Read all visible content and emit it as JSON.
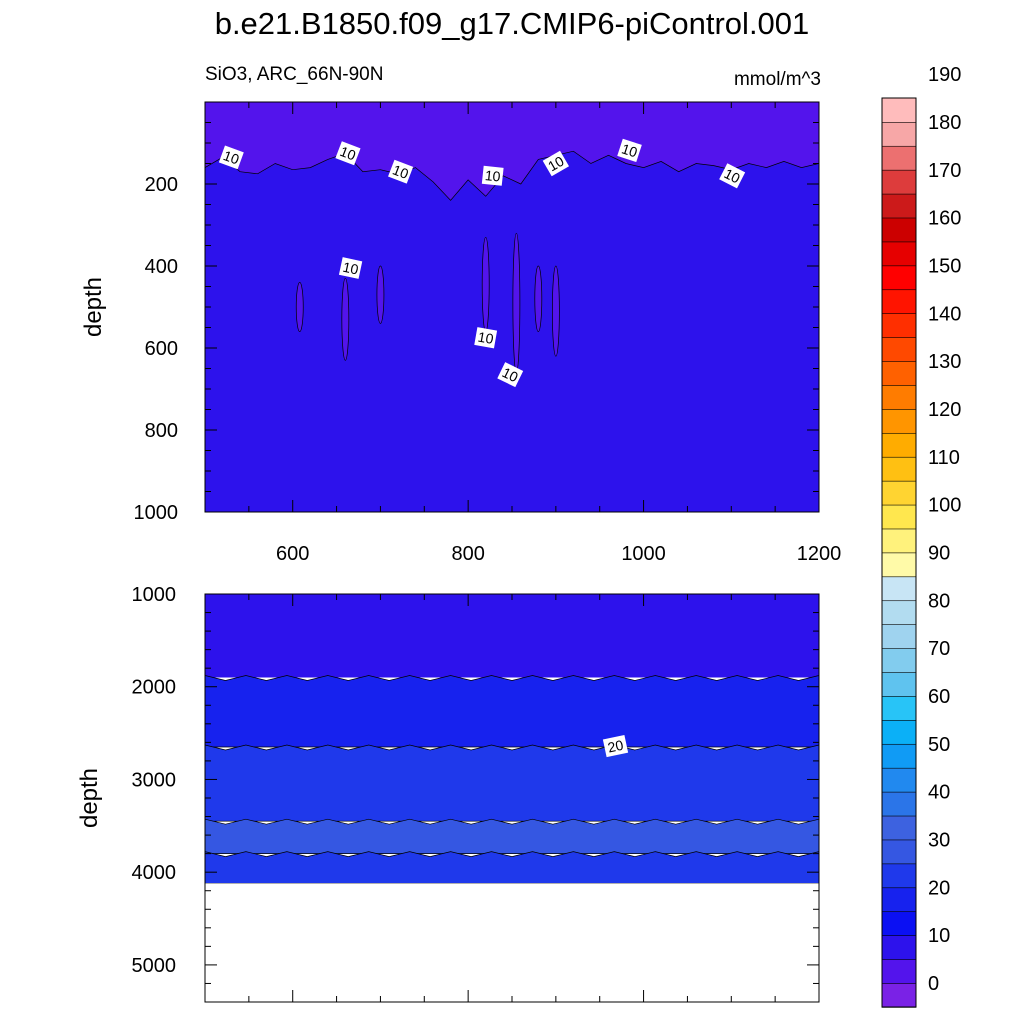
{
  "title": "b.e21.B1850.f09_g17.CMIP6-piControl.001",
  "subtitle_left": "SiO3, ARC_66N-90N",
  "units": "mmol/m^3",
  "chart_data": [
    {
      "type": "heatmap",
      "panel": "upper",
      "ylabel": "depth",
      "xlabel": "",
      "xlim": [
        500,
        1200
      ],
      "ylim": [
        1000,
        0
      ],
      "xticks": [
        600,
        800,
        1000,
        1200
      ],
      "yticks": [
        200,
        400,
        600,
        800,
        1000
      ],
      "description_levels": "values mostly 5-10 mmol/m^3; above ~150 m depth values 0-5 (shallower contour at 10)",
      "contour_labels": [
        {
          "text": "10",
          "x": 530,
          "y": 135
        },
        {
          "text": "10",
          "x": 663,
          "y": 125
        },
        {
          "text": "10",
          "x": 723,
          "y": 170
        },
        {
          "text": "10",
          "x": 828,
          "y": 180
        },
        {
          "text": "10",
          "x": 900,
          "y": 150
        },
        {
          "text": "10",
          "x": 984,
          "y": 118
        },
        {
          "text": "10",
          "x": 1101,
          "y": 180
        },
        {
          "text": "10",
          "x": 666,
          "y": 405
        },
        {
          "text": "10",
          "x": 820,
          "y": 575
        },
        {
          "text": "10",
          "x": 848,
          "y": 665
        }
      ],
      "contour_10_depth_profile": {
        "x": [
          500,
          520,
          540,
          560,
          580,
          600,
          620,
          640,
          660,
          680,
          700,
          720,
          740,
          760,
          780,
          800,
          820,
          840,
          860,
          880,
          900,
          920,
          940,
          960,
          980,
          1000,
          1020,
          1040,
          1060,
          1080,
          1100,
          1120,
          1140,
          1160,
          1180,
          1200
        ],
        "depth": [
          160,
          135,
          170,
          175,
          150,
          165,
          160,
          140,
          125,
          170,
          165,
          175,
          160,
          195,
          240,
          190,
          230,
          180,
          200,
          140,
          130,
          120,
          150,
          130,
          150,
          160,
          145,
          170,
          150,
          155,
          165,
          150,
          160,
          145,
          160,
          150
        ]
      }
    },
    {
      "type": "heatmap",
      "panel": "lower",
      "ylabel": "depth",
      "xlabel": "",
      "xlim": [
        500,
        1200
      ],
      "ylim": [
        5400,
        1000
      ],
      "yticks": [
        1000,
        2000,
        3000,
        4000,
        5000
      ],
      "ocean_floor_depth": 4120,
      "bands": [
        {
          "from_depth": 1000,
          "to_depth": 1900,
          "range": "10-15"
        },
        {
          "from_depth": 1900,
          "to_depth": 2650,
          "range": "15-20"
        },
        {
          "from_depth": 2650,
          "to_depth": 3450,
          "range": "20-25"
        },
        {
          "from_depth": 3450,
          "to_depth": 3800,
          "range": "25-30"
        },
        {
          "from_depth": 3800,
          "to_depth": 4120,
          "range": "20-25"
        }
      ],
      "contour_labels": [
        {
          "text": "20",
          "x": 968,
          "y": 2640
        }
      ]
    }
  ],
  "colorbar": {
    "labels": [
      "0",
      "10",
      "20",
      "30",
      "40",
      "50",
      "60",
      "70",
      "80",
      "90",
      "100",
      "110",
      "120",
      "130",
      "140",
      "150",
      "160",
      "170",
      "180",
      "190"
    ],
    "colors": [
      "#7a22e6",
      "#5314ec",
      "#2d12ec",
      "#0b10f3",
      "#1722ee",
      "#1f39eb",
      "#3557e2",
      "#3d62e0",
      "#2b75e8",
      "#2189ef",
      "#109bf5",
      "#0bb0f7",
      "#28c4f7",
      "#5fc3ef",
      "#82ccee",
      "#9fd3ef",
      "#b2dcf0",
      "#c8e5f5",
      "#fffaa8",
      "#fff27c",
      "#ffe74e",
      "#ffd431",
      "#ffc012",
      "#ffac00",
      "#ff9500",
      "#ff7c00",
      "#ff6100",
      "#ff4900",
      "#ff2f00",
      "#ff1400",
      "#ff0000",
      "#e60000",
      "#cc0000",
      "#cc1a1a",
      "#dd3c3c",
      "#ec7070",
      "#f7a7a7",
      "#ffbcbc"
    ]
  }
}
